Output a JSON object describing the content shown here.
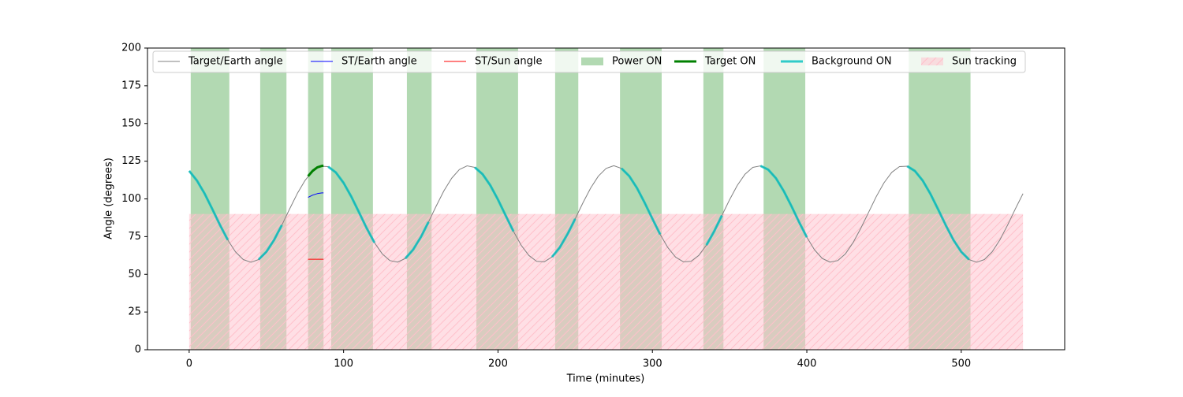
{
  "chart_data": {
    "type": "line",
    "xlabel": "Time (minutes)",
    "ylabel": "Angle (degrees)",
    "xlim": [
      -27,
      567
    ],
    "ylim": [
      0,
      200
    ],
    "xticks": [
      0,
      100,
      200,
      300,
      400,
      500
    ],
    "yticks": [
      0,
      25,
      50,
      75,
      100,
      125,
      150,
      175,
      200
    ],
    "grid": false,
    "legend": "upper center",
    "x": [
      0,
      5,
      10,
      15,
      20,
      25,
      30,
      35,
      40,
      45,
      50,
      55,
      60,
      65,
      70,
      75,
      80,
      85,
      90,
      95,
      100,
      105,
      110,
      115,
      120,
      125,
      130,
      135,
      140,
      145,
      150,
      155,
      160,
      165,
      170,
      175,
      180,
      185,
      190,
      195,
      200,
      205,
      210,
      215,
      220,
      225,
      230,
      235,
      240,
      245,
      250,
      255,
      260,
      265,
      270,
      275,
      280,
      285,
      290,
      295,
      300,
      305,
      310,
      315,
      320,
      325,
      330,
      335,
      340,
      345,
      350,
      355,
      360,
      365,
      370,
      375,
      380,
      385,
      390,
      395,
      400,
      405,
      410,
      415,
      420,
      425,
      430,
      435,
      440,
      445,
      450,
      455,
      460,
      465,
      470,
      475,
      480,
      485,
      490,
      495,
      500,
      505,
      510,
      515,
      520,
      525,
      530,
      535,
      540
    ],
    "series": [
      {
        "name": "Target/Earth angle",
        "kind": "line",
        "color": "#808080",
        "linewidth": 1,
        "values": [
          118.6,
          112.2,
          103.5,
          93.2,
          82.6,
          72.8,
          64.9,
          59.8,
          58.0,
          59.8,
          64.9,
          72.8,
          82.6,
          93.2,
          103.5,
          112.2,
          118.6,
          121.7,
          121.4,
          117.5,
          110.6,
          101.5,
          91.1,
          80.5,
          71.0,
          63.6,
          59.1,
          58.1,
          60.5,
          66.3,
          74.6,
          84.7,
          95.3,
          105.4,
          113.7,
          119.5,
          121.9,
          120.9,
          116.4,
          109.0,
          99.5,
          88.9,
          78.5,
          69.3,
          62.5,
          58.6,
          58.3,
          61.5,
          67.8,
          76.6,
          86.8,
          97.4,
          107.2,
          115.1,
          120.2,
          122.0,
          120.2,
          115.1,
          107.2,
          97.4,
          86.8,
          76.5,
          67.7,
          61.4,
          58.3,
          58.6,
          62.5,
          69.4,
          78.5,
          89.0,
          99.5,
          109.0,
          116.4,
          120.9,
          121.9,
          119.4,
          113.7,
          105.3,
          95.3,
          84.6,
          74.6,
          66.2,
          60.5,
          58.1,
          59.1,
          63.6,
          71.1,
          80.6,
          91.1,
          101.6,
          110.7,
          117.6,
          121.4,
          121.7,
          118.5,
          112.2,
          103.4,
          93.1,
          82.5,
          72.7,
          64.9,
          59.8,
          58.0,
          59.8,
          64.9,
          72.8,
          82.6,
          93.3,
          103.5
        ]
      },
      {
        "name": "ST/Earth angle",
        "kind": "line",
        "color": "#0000ff",
        "linewidth": 1,
        "x": [
          77,
          80,
          83,
          86,
          87
        ],
        "values": [
          101,
          102.5,
          103.5,
          104,
          104
        ]
      },
      {
        "name": "ST/Sun angle",
        "kind": "line",
        "color": "#ff0000",
        "linewidth": 1,
        "x": [
          77,
          87
        ],
        "values": [
          60,
          60
        ]
      },
      {
        "name": "Power ON",
        "kind": "span",
        "color": "#008000",
        "alpha": 0.3,
        "intervals": [
          [
            1,
            26
          ],
          [
            46,
            63
          ],
          [
            77,
            87
          ],
          [
            92,
            119
          ],
          [
            141,
            157
          ],
          [
            186,
            213
          ],
          [
            237,
            252
          ],
          [
            279,
            306
          ],
          [
            333,
            346
          ],
          [
            372,
            399
          ],
          [
            466,
            506
          ]
        ]
      },
      {
        "name": "Target ON",
        "kind": "line",
        "color": "#008000",
        "linewidth": 3,
        "x": [
          77,
          80,
          83,
          86,
          87
        ],
        "values": [
          115.1,
          118.6,
          120.9,
          121.9,
          122.0
        ]
      },
      {
        "name": "Background ON",
        "kind": "line",
        "color": "#00bfbf",
        "linewidth": 3,
        "alpha": 0.8,
        "values": [
          118.6,
          112.2,
          103.5,
          93.2,
          82.6,
          72.8,
          null,
          null,
          null,
          59.8,
          64.9,
          72.8,
          82.6,
          null,
          null,
          null,
          null,
          null,
          121.4,
          117.5,
          110.6,
          101.5,
          91.1,
          80.5,
          71.0,
          null,
          null,
          null,
          60.5,
          66.3,
          74.6,
          84.7,
          null,
          null,
          null,
          null,
          null,
          120.9,
          116.4,
          109.0,
          99.5,
          88.9,
          78.5,
          null,
          null,
          null,
          null,
          61.5,
          67.8,
          76.6,
          86.8,
          null,
          null,
          null,
          null,
          null,
          120.2,
          115.1,
          107.2,
          97.4,
          86.8,
          76.5,
          null,
          null,
          null,
          null,
          null,
          69.4,
          78.5,
          89.0,
          null,
          null,
          null,
          null,
          121.9,
          119.4,
          113.7,
          105.3,
          95.3,
          84.6,
          74.6,
          null,
          null,
          null,
          null,
          null,
          null,
          null,
          null,
          null,
          null,
          null,
          null,
          121.7,
          118.5,
          112.2,
          103.4,
          93.1,
          82.5,
          72.7,
          64.9,
          59.8,
          null,
          null,
          null,
          null,
          null,
          null,
          null
        ]
      },
      {
        "name": "Sun tracking",
        "kind": "fill",
        "color": "#ffc0cb",
        "alpha": 0.5,
        "hatch": "//",
        "x_range": [
          0,
          540
        ],
        "y_range": [
          0,
          90
        ]
      }
    ]
  }
}
